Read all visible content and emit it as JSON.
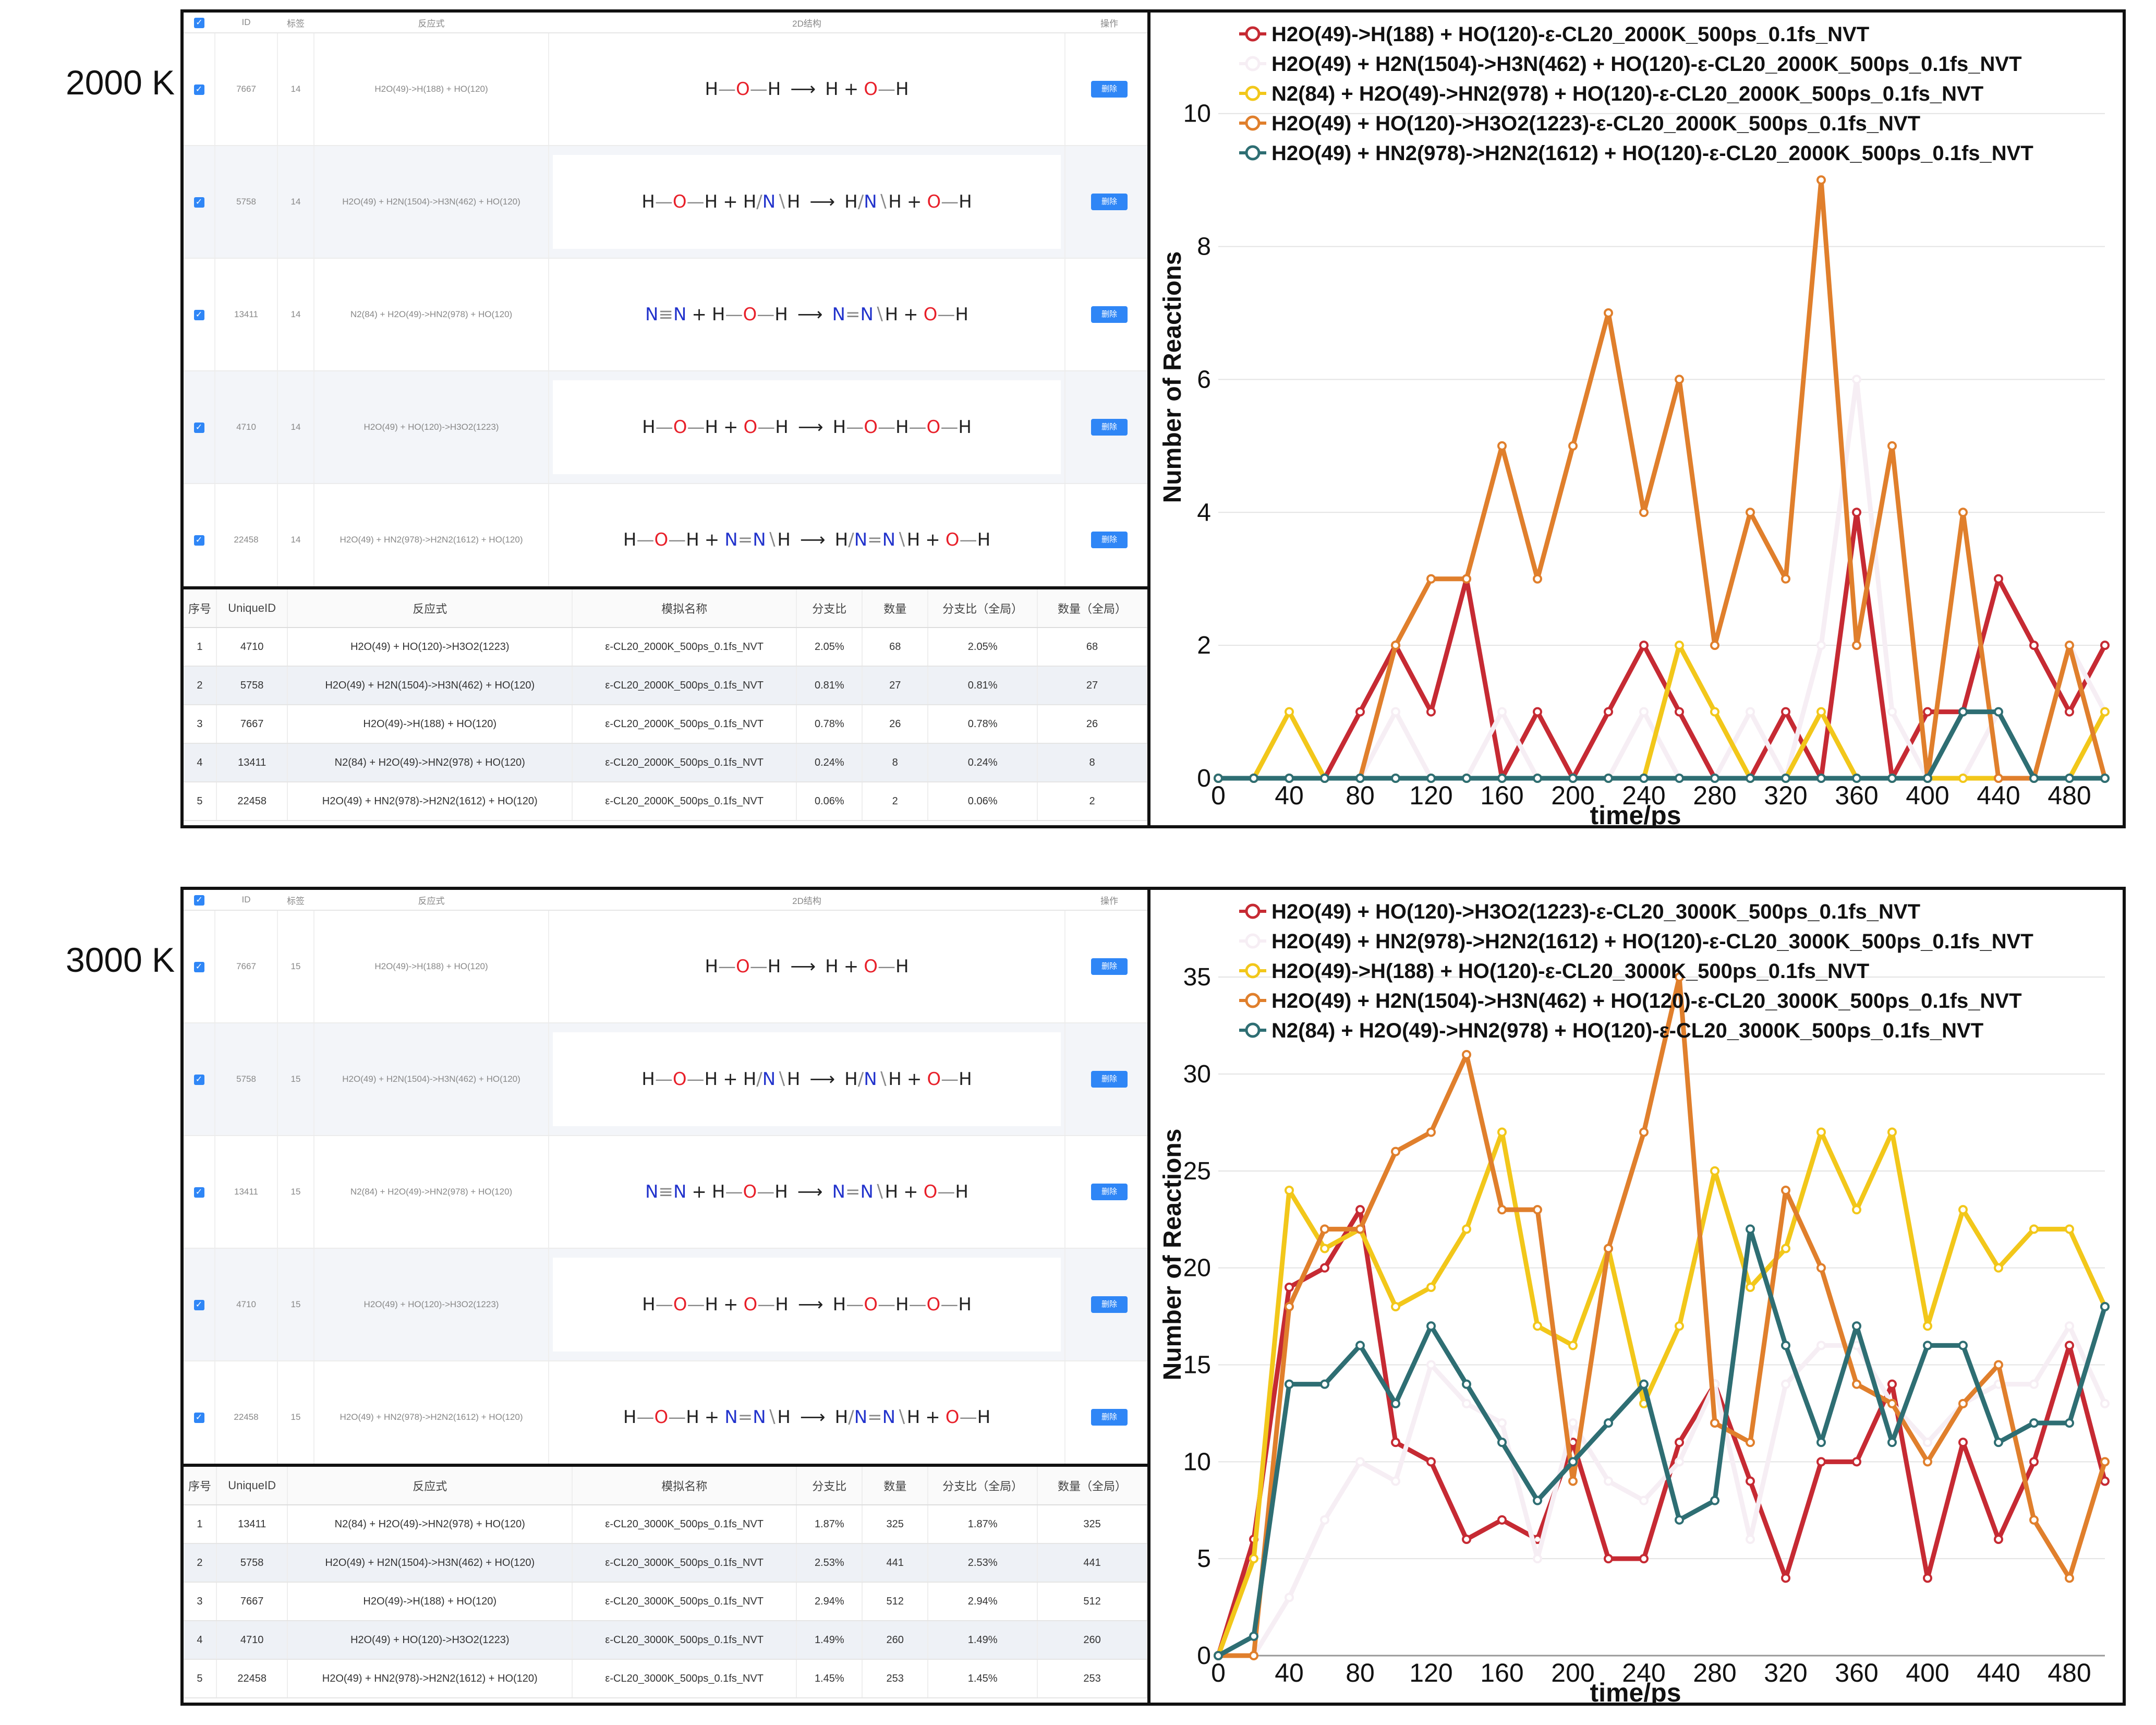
{
  "upper_headers": [
    "",
    "ID",
    "标签",
    "反应式",
    "2D结构",
    "操作"
  ],
  "op_label": "删除",
  "lower_headers_2000": [
    "序号",
    "UniqueID",
    "反应式",
    "模拟名称",
    "分支比",
    "数量",
    "分支比（全局）",
    "数量（全局）"
  ],
  "lower_headers_3000": [
    "序号",
    "UniqueID",
    "反应式",
    "模拟名称",
    "分支比",
    "数量",
    "分支比（全局）",
    "数量（全局）"
  ],
  "panel_2000": {
    "temp_label": "2000 K",
    "upper_rows": [
      {
        "id": "7667",
        "tag": "14",
        "eq": "H2O(49)->H(188) + HO(120)",
        "struct": "s1"
      },
      {
        "id": "5758",
        "tag": "14",
        "eq": "H2O(49) + H2N(1504)->H3N(462) + HO(120)",
        "struct": "s2"
      },
      {
        "id": "13411",
        "tag": "14",
        "eq": "N2(84) + H2O(49)->HN2(978) + HO(120)",
        "struct": "s3"
      },
      {
        "id": "4710",
        "tag": "14",
        "eq": "H2O(49) + HO(120)->H3O2(1223)",
        "struct": "s4"
      },
      {
        "id": "22458",
        "tag": "14",
        "eq": "H2O(49) + HN2(978)->H2N2(1612) + HO(120)",
        "struct": "s5"
      }
    ],
    "lower_rows": [
      [
        "1",
        "4710",
        "H2O(49) + HO(120)->H3O2(1223)",
        "ε-CL20_2000K_500ps_0.1fs_NVT",
        "2.05%",
        "68",
        "2.05%",
        "68"
      ],
      [
        "2",
        "5758",
        "H2O(49) + H2N(1504)->H3N(462) + HO(120)",
        "ε-CL20_2000K_500ps_0.1fs_NVT",
        "0.81%",
        "27",
        "0.81%",
        "27"
      ],
      [
        "3",
        "7667",
        "H2O(49)->H(188) + HO(120)",
        "ε-CL20_2000K_500ps_0.1fs_NVT",
        "0.78%",
        "26",
        "0.78%",
        "26"
      ],
      [
        "4",
        "13411",
        "N2(84) + H2O(49)->HN2(978) + HO(120)",
        "ε-CL20_2000K_500ps_0.1fs_NVT",
        "0.24%",
        "8",
        "0.24%",
        "8"
      ],
      [
        "5",
        "22458",
        "H2O(49) + HN2(978)->H2N2(1612) + HO(120)",
        "ε-CL20_2000K_500ps_0.1fs_NVT",
        "0.06%",
        "2",
        "0.06%",
        "2"
      ]
    ]
  },
  "panel_3000": {
    "temp_label": "3000 K",
    "upper_rows": [
      {
        "id": "7667",
        "tag": "15",
        "eq": "H2O(49)->H(188) + HO(120)",
        "struct": "s1"
      },
      {
        "id": "5758",
        "tag": "15",
        "eq": "H2O(49) + H2N(1504)->H3N(462) + HO(120)",
        "struct": "s2"
      },
      {
        "id": "13411",
        "tag": "15",
        "eq": "N2(84) + H2O(49)->HN2(978) + HO(120)",
        "struct": "s3"
      },
      {
        "id": "4710",
        "tag": "15",
        "eq": "H2O(49) + HO(120)->H3O2(1223)",
        "struct": "s4"
      },
      {
        "id": "22458",
        "tag": "15",
        "eq": "H2O(49) + HN2(978)->H2N2(1612) + HO(120)",
        "struct": "s5"
      }
    ],
    "lower_rows": [
      [
        "1",
        "13411",
        "N2(84) + H2O(49)->HN2(978) + HO(120)",
        "ε-CL20_3000K_500ps_0.1fs_NVT",
        "1.87%",
        "325",
        "1.87%",
        "325"
      ],
      [
        "2",
        "5758",
        "H2O(49) + H2N(1504)->H3N(462) + HO(120)",
        "ε-CL20_3000K_500ps_0.1fs_NVT",
        "2.53%",
        "441",
        "2.53%",
        "441"
      ],
      [
        "3",
        "7667",
        "H2O(49)->H(188) + HO(120)",
        "ε-CL20_3000K_500ps_0.1fs_NVT",
        "2.94%",
        "512",
        "2.94%",
        "512"
      ],
      [
        "4",
        "4710",
        "H2O(49) + HO(120)->H3O2(1223)",
        "ε-CL20_3000K_500ps_0.1fs_NVT",
        "1.49%",
        "260",
        "1.49%",
        "260"
      ],
      [
        "5",
        "22458",
        "H2O(49) + HN2(978)->H2N2(1612) + HO(120)",
        "ε-CL20_3000K_500ps_0.1fs_NVT",
        "1.45%",
        "253",
        "1.45%",
        "253"
      ]
    ]
  },
  "chart_data": [
    {
      "type": "line",
      "xlabel": "time/ps",
      "ylabel": "Number of Reactions",
      "xlim": [
        0,
        500
      ],
      "ylim": [
        0,
        10.5
      ],
      "xticks": [
        0,
        40,
        80,
        120,
        160,
        200,
        240,
        280,
        320,
        360,
        400,
        440,
        480
      ],
      "yticks": [
        0,
        2,
        4,
        6,
        8,
        10
      ],
      "grid": "horizontal",
      "legend": "top-left",
      "x": [
        0,
        20,
        40,
        60,
        80,
        100,
        120,
        140,
        160,
        180,
        200,
        220,
        240,
        260,
        280,
        300,
        320,
        340,
        360,
        380,
        400,
        420,
        440,
        460,
        480,
        500
      ],
      "series": [
        {
          "name": "H2O(49)->H(188) + HO(120)-ε-CL20_2000K_500ps_0.1fs_NVT",
          "color": "#c62a33",
          "values": [
            0,
            0,
            0,
            0,
            1,
            2,
            1,
            3,
            0,
            1,
            0,
            1,
            2,
            1,
            0,
            0,
            1,
            0,
            4,
            0,
            1,
            1,
            3,
            2,
            1,
            2
          ]
        },
        {
          "name": "H2O(49) + H2N(1504)->H3N(462) + HO(120)-ε-CL20_2000K_500ps_0.1fs_NVT",
          "color": "#f6eef4",
          "values": [
            0,
            0,
            0,
            0,
            0,
            1,
            0,
            0,
            1,
            0,
            0,
            0,
            1,
            0,
            0,
            1,
            0,
            2,
            6,
            1,
            0,
            0,
            1,
            0,
            2,
            1
          ]
        },
        {
          "name": "N2(84) + H2O(49)->HN2(978) + HO(120)-ε-CL20_2000K_500ps_0.1fs_NVT",
          "color": "#f2c71a",
          "values": [
            0,
            0,
            1,
            0,
            0,
            0,
            0,
            0,
            0,
            0,
            0,
            0,
            0,
            2,
            1,
            0,
            0,
            1,
            0,
            0,
            0,
            0,
            0,
            0,
            0,
            1
          ]
        },
        {
          "name": "H2O(49) + HO(120)->H3O2(1223)-ε-CL20_2000K_500ps_0.1fs_NVT",
          "color": "#e07f2c",
          "values": [
            0,
            0,
            0,
            0,
            0,
            2,
            3,
            3,
            5,
            3,
            5,
            7,
            4,
            6,
            2,
            4,
            3,
            9,
            2,
            5,
            0,
            4,
            0,
            0,
            2,
            0
          ]
        },
        {
          "name": "H2O(49) + HN2(978)->H2N2(1612) + HO(120)-ε-CL20_2000K_500ps_0.1fs_NVT",
          "color": "#2e6e73",
          "values": [
            0,
            0,
            0,
            0,
            0,
            0,
            0,
            0,
            0,
            0,
            0,
            0,
            0,
            0,
            0,
            0,
            0,
            0,
            0,
            0,
            0,
            1,
            1,
            0,
            0,
            0
          ]
        }
      ]
    },
    {
      "type": "line",
      "xlabel": "time/ps",
      "ylabel": "Number of Reactions",
      "xlim": [
        0,
        500
      ],
      "ylim": [
        0,
        36
      ],
      "xticks": [
        0,
        40,
        80,
        120,
        160,
        200,
        240,
        280,
        320,
        360,
        400,
        440,
        480
      ],
      "yticks": [
        0,
        5,
        10,
        15,
        20,
        25,
        30,
        35
      ],
      "grid": "horizontal",
      "legend": "top-left",
      "x": [
        0,
        20,
        40,
        60,
        80,
        100,
        120,
        140,
        160,
        180,
        200,
        220,
        240,
        260,
        280,
        300,
        320,
        340,
        360,
        380,
        400,
        420,
        440,
        460,
        480,
        500
      ],
      "series": [
        {
          "name": "H2O(49) + HO(120)->H3O2(1223)-ε-CL20_3000K_500ps_0.1fs_NVT",
          "color": "#c62a33",
          "values": [
            0,
            6,
            19,
            20,
            23,
            11,
            10,
            6,
            7,
            6,
            11,
            5,
            5,
            11,
            14,
            9,
            4,
            10,
            10,
            14,
            4,
            11,
            6,
            10,
            16,
            9
          ]
        },
        {
          "name": "H2O(49) + HN2(978)->H2N2(1612) + HO(120)-ε-CL20_3000K_500ps_0.1fs_NVT",
          "color": "#f6eef4",
          "values": [
            0,
            0,
            3,
            7,
            10,
            9,
            15,
            13,
            12,
            5,
            12,
            9,
            8,
            10,
            14,
            6,
            14,
            16,
            16,
            13,
            11,
            13,
            14,
            14,
            17,
            13
          ]
        },
        {
          "name": "H2O(49)->H(188) + HO(120)-ε-CL20_3000K_500ps_0.1fs_NVT",
          "color": "#f2c71a",
          "values": [
            0,
            5,
            24,
            21,
            22,
            18,
            19,
            22,
            27,
            17,
            16,
            21,
            13,
            17,
            25,
            19,
            21,
            27,
            23,
            27,
            17,
            23,
            20,
            22,
            22,
            18
          ]
        },
        {
          "name": "H2O(49) + H2N(1504)->H3N(462) + HO(120)-ε-CL20_3000K_500ps_0.1fs_NVT",
          "color": "#e07f2c",
          "values": [
            0,
            0,
            18,
            22,
            22,
            26,
            27,
            31,
            23,
            23,
            9,
            21,
            27,
            35,
            12,
            11,
            24,
            20,
            14,
            13,
            10,
            13,
            15,
            7,
            4,
            10
          ]
        },
        {
          "name": "N2(84) + H2O(49)->HN2(978) + HO(120)-ε-CL20_3000K_500ps_0.1fs_NVT",
          "color": "#2e6e73",
          "values": [
            0,
            1,
            14,
            14,
            16,
            13,
            17,
            14,
            11,
            8,
            10,
            12,
            14,
            7,
            8,
            22,
            16,
            11,
            17,
            11,
            16,
            16,
            11,
            12,
            12,
            18
          ]
        }
      ]
    }
  ]
}
